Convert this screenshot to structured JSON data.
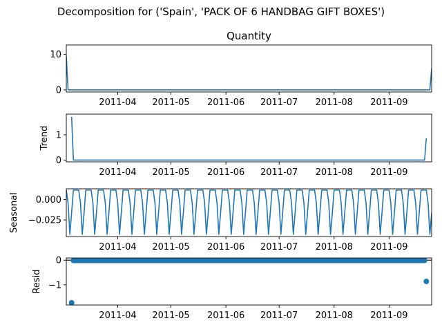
{
  "suptitle": "Decomposition for ('Spain', 'PACK OF 6 HANDBAG GIFT BOXES')",
  "chart_data": [
    {
      "id": "observed",
      "type": "line",
      "title": "Quantity",
      "ylabel": "",
      "xlim": [
        "2011-03-03",
        "2011-09-25"
      ],
      "ylim": [
        -0.6,
        12.6
      ],
      "yticks": [
        0,
        10
      ],
      "ytick_labels": [
        "0",
        "10"
      ],
      "x_ticks": [
        "2011-04",
        "2011-05",
        "2011-06",
        "2011-07",
        "2011-08",
        "2011-09"
      ],
      "series": [
        {
          "color": "#1f77b4",
          "points": [
            [
              "2011-03-03",
              9.5
            ],
            [
              "2011-03-04",
              0
            ],
            [
              "2011-09-24",
              0
            ],
            [
              "2011-09-25",
              6
            ]
          ]
        }
      ]
    },
    {
      "id": "trend",
      "type": "line",
      "title": "",
      "ylabel": "Trend",
      "xlim": [
        "2011-03-03",
        "2011-09-25"
      ],
      "ylim": [
        -0.07,
        1.82
      ],
      "yticks": [
        0,
        1
      ],
      "ytick_labels": [
        "0",
        "1"
      ],
      "x_ticks": [
        "2011-04",
        "2011-05",
        "2011-06",
        "2011-07",
        "2011-08",
        "2011-09"
      ],
      "series": [
        {
          "color": "#1f77b4",
          "points": [
            [
              "2011-03-06",
              1.71
            ],
            [
              "2011-03-07",
              0
            ],
            [
              "2011-09-21",
              0
            ],
            [
              "2011-09-22",
              0.86
            ]
          ]
        }
      ]
    },
    {
      "id": "seasonal",
      "type": "line",
      "title": "",
      "ylabel": "Seasonal",
      "xlim": [
        "2011-03-03",
        "2011-09-25"
      ],
      "ylim": [
        -0.0455,
        0.0133
      ],
      "yticks": [
        0.0,
        -0.025
      ],
      "ytick_labels": [
        "0.000",
        "−0.025"
      ],
      "x_ticks": [
        "2011-04",
        "2011-05",
        "2011-06",
        "2011-07",
        "2011-08",
        "2011-09"
      ],
      "series": [
        {
          "color": "#1f77b4",
          "start": "2011-03-03",
          "period_days": 7,
          "pattern": [
            0.0117,
            -0.0043,
            -0.0428,
            -0.0163,
            0.0117,
            0.0117,
            0.0117
          ]
        }
      ]
    },
    {
      "id": "resid",
      "type": "scatter",
      "title": "",
      "ylabel": "Resid",
      "xlim": [
        "2011-03-03",
        "2011-09-25"
      ],
      "ylim": [
        -1.82,
        0.09
      ],
      "yticks": [
        0,
        -1
      ],
      "ytick_labels": [
        "0",
        "−1"
      ],
      "x_ticks": [
        "2011-04",
        "2011-05",
        "2011-06",
        "2011-07",
        "2011-08",
        "2011-09"
      ],
      "zero_line": true,
      "series": [
        {
          "color": "#1f77b4",
          "range": [
            "2011-03-07",
            "2011-09-21"
          ],
          "value": -0.01,
          "outliers": [
            [
              "2011-03-06",
              -1.73
            ],
            [
              "2011-09-22",
              -0.86
            ]
          ]
        }
      ]
    }
  ]
}
